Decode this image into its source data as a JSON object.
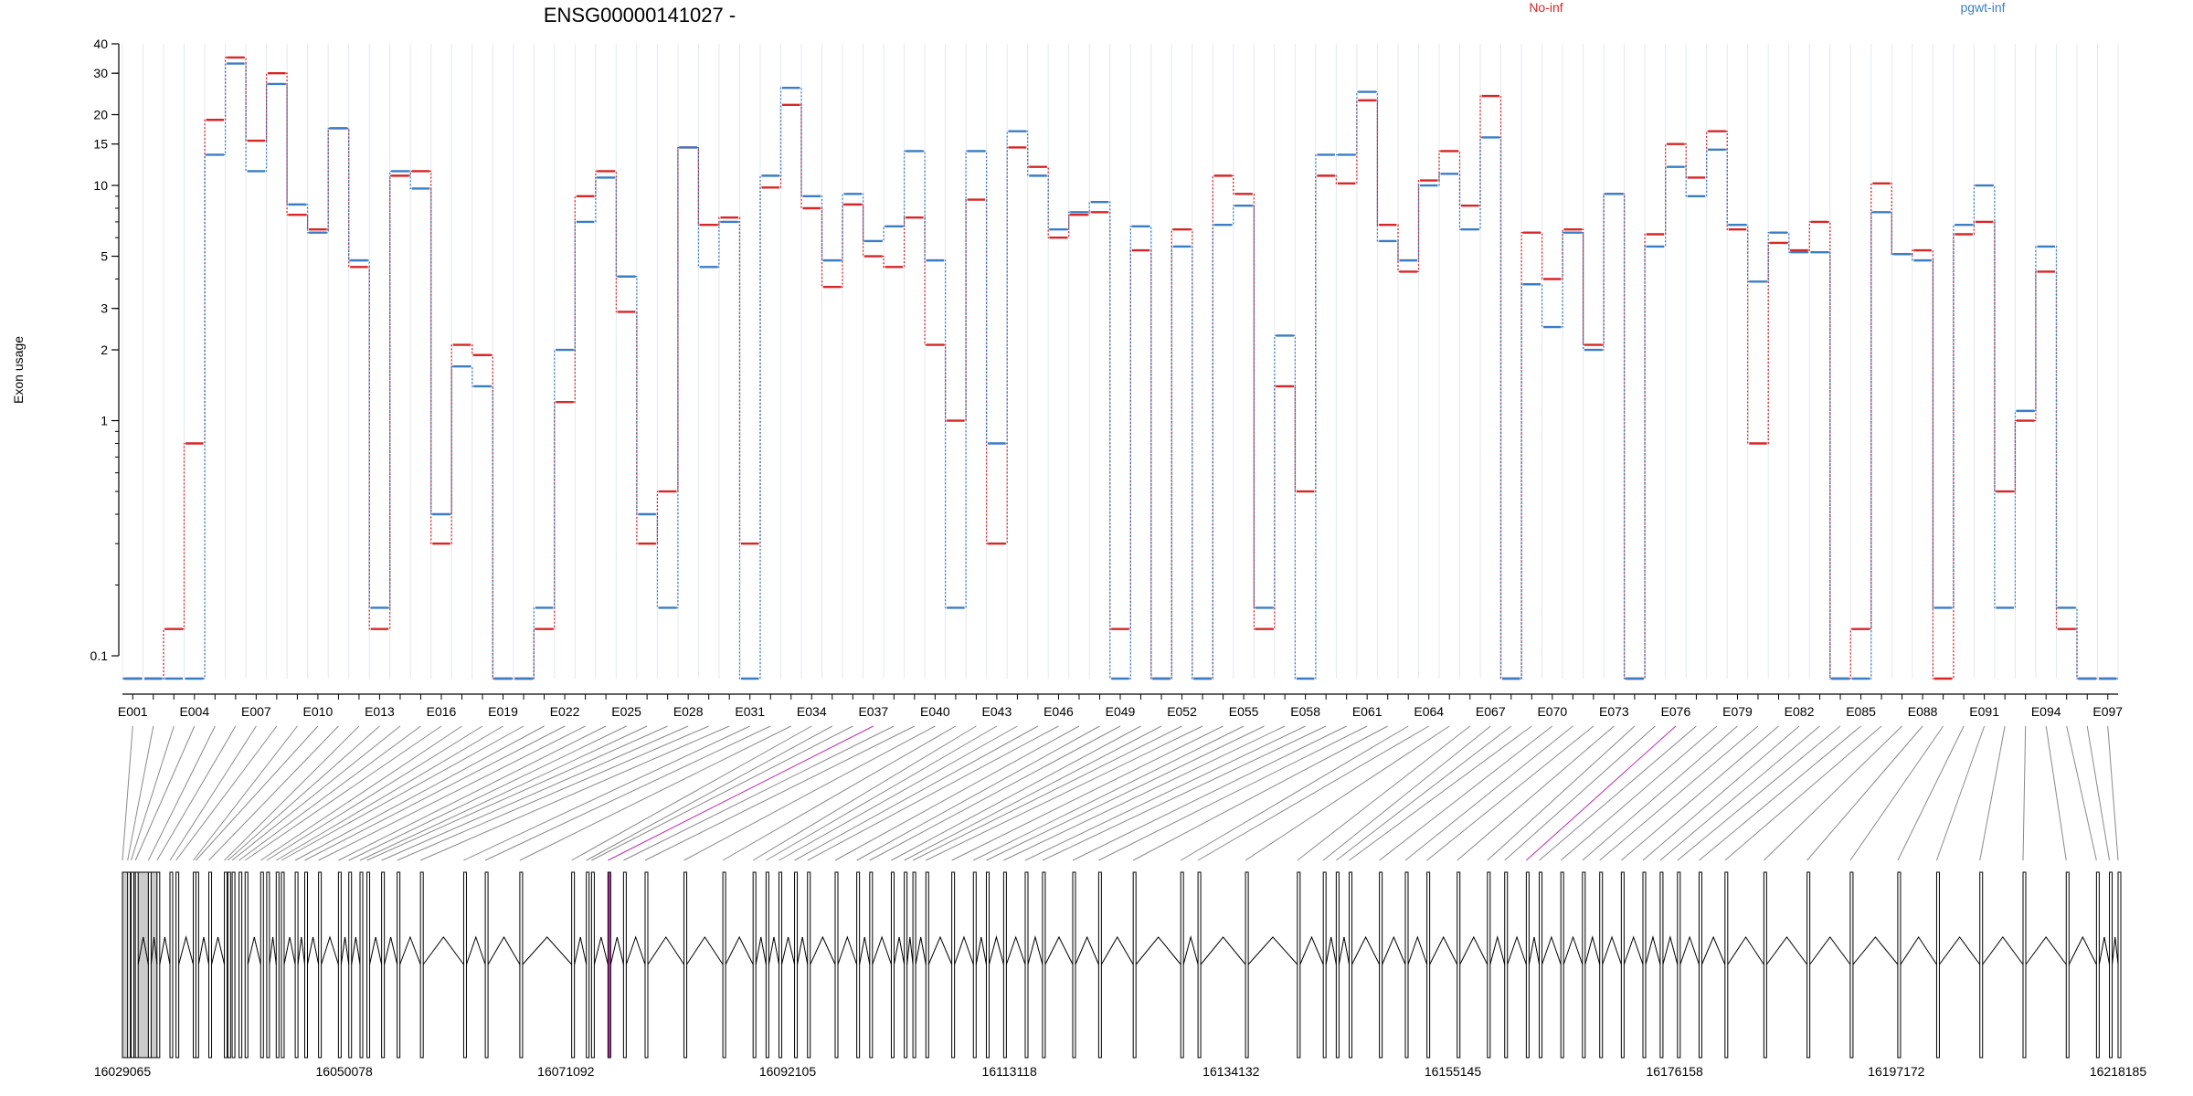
{
  "chart_data": {
    "type": "line",
    "title": "ENSG00000141027 -",
    "ylabel": "Exon usage",
    "yscale": "log",
    "ylim": [
      0.08,
      40
    ],
    "yticks": [
      0.1,
      1,
      2,
      3,
      5,
      10,
      15,
      20,
      30,
      40
    ],
    "ytick_labels": [
      "0.1",
      "1",
      "2",
      "3",
      "5",
      "10",
      "15",
      "20",
      "30",
      "40"
    ],
    "exon_count": 97,
    "xtick_labels": [
      "E001",
      "E004",
      "E007",
      "E010",
      "E013",
      "E016",
      "E019",
      "E022",
      "E025",
      "E028",
      "E031",
      "E034",
      "E037",
      "E040",
      "E043",
      "E046",
      "E049",
      "E052",
      "E055",
      "E058",
      "E061",
      "E064",
      "E067",
      "E070",
      "E073",
      "E076",
      "E079",
      "E082",
      "E085",
      "E088",
      "E091",
      "E094",
      "E097"
    ],
    "series": [
      {
        "name": "No-inf",
        "color": "#d62728",
        "values": [
          0.08,
          0.08,
          0.13,
          0.8,
          19,
          35,
          15.5,
          30,
          7.5,
          6.5,
          17.5,
          4.5,
          0.13,
          11,
          11.5,
          0.3,
          2.1,
          1.9,
          0.08,
          0.08,
          0.13,
          1.2,
          9,
          11.5,
          2.9,
          0.3,
          0.5,
          14.5,
          6.8,
          7.3,
          0.3,
          9.8,
          22,
          8,
          3.7,
          8.3,
          5,
          4.5,
          7.3,
          2.1,
          1,
          8.7,
          0.3,
          14.5,
          12,
          6,
          7.5,
          7.7,
          0.13,
          5.3,
          0.08,
          6.5,
          0.08,
          11,
          9.2,
          0.13,
          1.4,
          0.5,
          11,
          10.2,
          23,
          6.8,
          4.3,
          10.5,
          14,
          8.2,
          24,
          0.08,
          6.3,
          4,
          6.5,
          2.1,
          9.2,
          0.08,
          6.2,
          15,
          10.8,
          17,
          6.5,
          0.8,
          5.7,
          5.3,
          7,
          0.08,
          0.13,
          10.2,
          5.1,
          5.3,
          0.08,
          6.2,
          7,
          0.5,
          1,
          4.3,
          0.13,
          0.08,
          0.08
        ]
      },
      {
        "name": "pgwt-inf",
        "color": "#3b7dc4",
        "values": [
          0.08,
          0.08,
          0.08,
          0.08,
          13.5,
          33,
          11.5,
          27,
          8.3,
          6.3,
          17.5,
          4.8,
          0.16,
          11.5,
          9.7,
          0.4,
          1.7,
          1.4,
          0.08,
          0.08,
          0.16,
          2,
          7,
          10.8,
          4.1,
          0.4,
          0.16,
          14.5,
          4.5,
          7,
          0.08,
          11,
          26,
          9,
          4.8,
          9.2,
          5.8,
          6.7,
          14,
          4.8,
          0.16,
          14,
          0.8,
          17,
          11,
          6.5,
          7.7,
          8.5,
          0.08,
          6.7,
          0.08,
          5.5,
          0.08,
          6.8,
          8.2,
          0.16,
          2.3,
          0.08,
          13.5,
          13.5,
          25,
          5.8,
          4.8,
          10,
          11.2,
          6.5,
          16,
          0.08,
          3.8,
          2.5,
          6.3,
          2,
          9.2,
          0.08,
          5.5,
          12,
          9,
          14.2,
          6.8,
          3.9,
          6.3,
          5.2,
          5.2,
          0.08,
          0.08,
          7.7,
          5.1,
          4.8,
          0.16,
          6.8,
          10,
          0.16,
          1.1,
          5.5,
          0.16,
          0.08,
          0.08
        ]
      }
    ],
    "genome_axis_labels": [
      "16029065",
      "16050078",
      "16071092",
      "16092105",
      "16113118",
      "16134132",
      "16155145",
      "16176158",
      "16197172",
      "16218185"
    ]
  }
}
